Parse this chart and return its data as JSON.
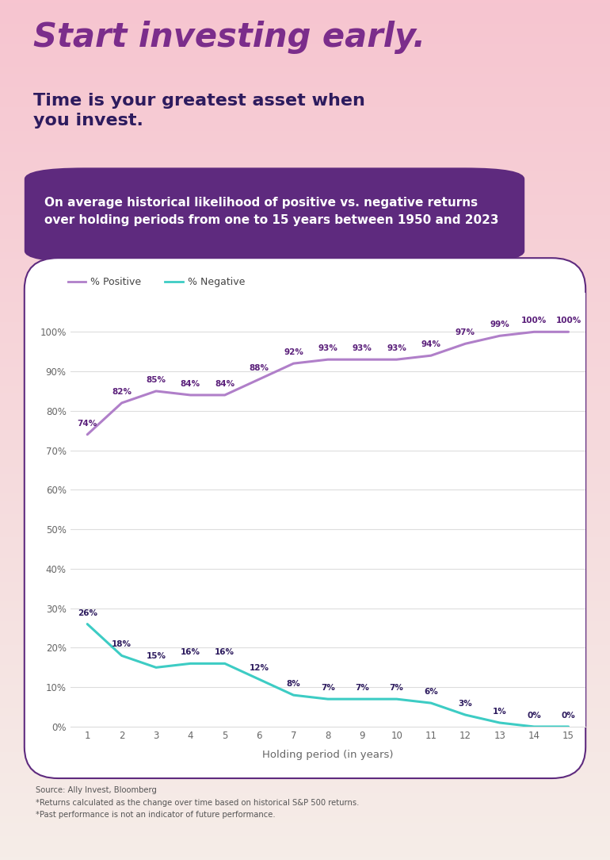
{
  "title_bold": "Start investing early.",
  "title_sub": "Time is your greatest asset when\nyou invest.",
  "subtitle_box": "On average historical likelihood of positive vs. negative returns\nover holding periods from one to 15 years between 1950 and 2023",
  "xlabel": "Holding period (in years)",
  "years": [
    1,
    2,
    3,
    4,
    5,
    6,
    7,
    8,
    9,
    10,
    11,
    12,
    13,
    14,
    15
  ],
  "positive": [
    74,
    82,
    85,
    84,
    84,
    88,
    92,
    93,
    93,
    93,
    94,
    97,
    99,
    100,
    100
  ],
  "negative": [
    26,
    18,
    15,
    16,
    16,
    12,
    8,
    7,
    7,
    7,
    6,
    3,
    1,
    0,
    0
  ],
  "positive_color": "#b07fc9",
  "negative_color": "#3dccc4",
  "positive_label": "% Positive",
  "negative_label": "% Negative",
  "bg_top_color": "#f7c5d0",
  "bg_bottom_color": "#f5ede8",
  "chart_bg": "#ffffff",
  "title_color": "#7b2d8b",
  "subtitle_title_color": "#2d1b5e",
  "subtitle_box_color": "#5e2a7e",
  "footer_text": "Source: Ally Invest, Bloomberg\n*Returns calculated as the change over time based on historical S&P 500 returns.\n*Past performance is not an indicator of future performance.",
  "ylim_min": 0,
  "ylim_max": 110,
  "yticks": [
    0,
    10,
    20,
    30,
    40,
    50,
    60,
    70,
    80,
    90,
    100
  ],
  "annotation_color_positive": "#5a1f7a",
  "annotation_color_negative": "#2d1b5e",
  "tick_color": "#666666",
  "grid_color": "#dddddd",
  "border_color": "#5e2a7e"
}
